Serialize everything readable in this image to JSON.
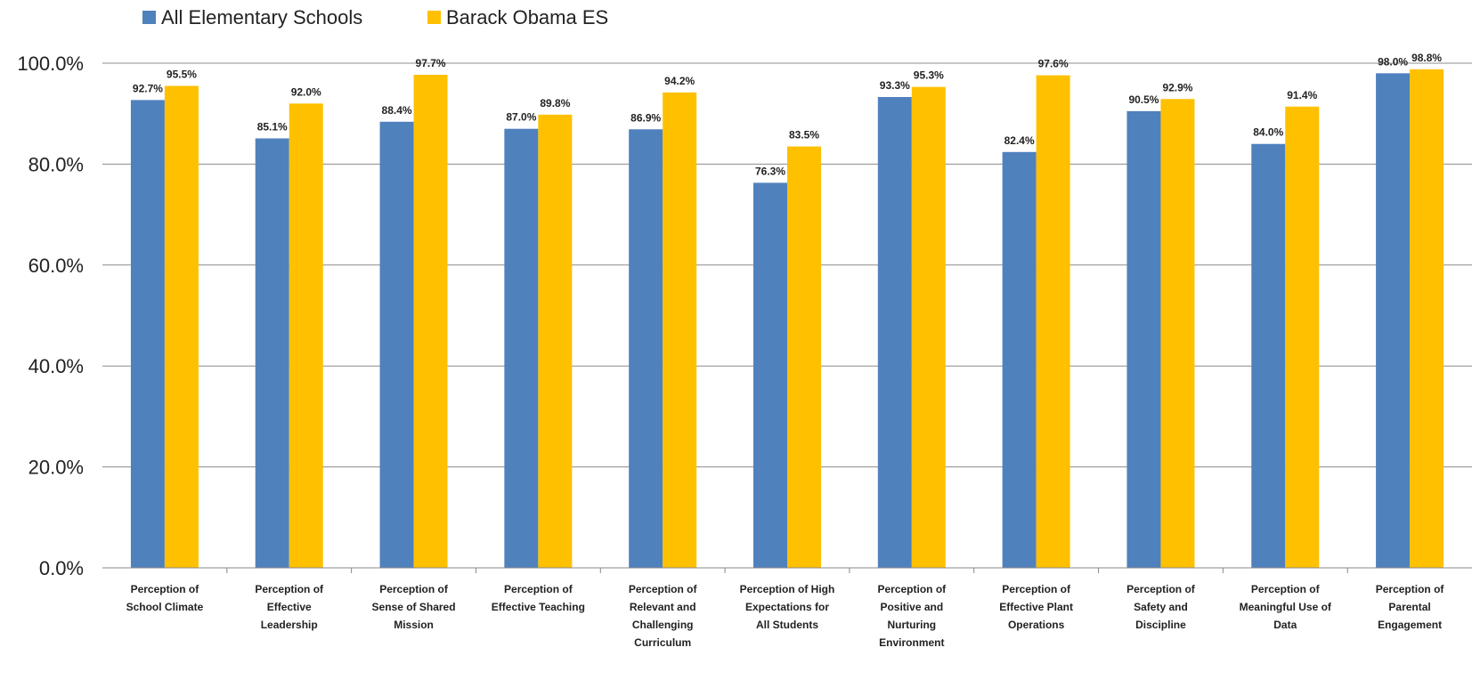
{
  "chart_data": {
    "type": "bar",
    "title": "",
    "xlabel": "",
    "ylabel": "",
    "ylim": [
      0,
      100
    ],
    "ytick_labels": [
      "0.0%",
      "20.0%",
      "40.0%",
      "60.0%",
      "80.0%",
      "100.0%"
    ],
    "yticks": [
      0,
      20,
      40,
      60,
      80,
      100
    ],
    "grid": "horizontal",
    "legend_position": "top-left",
    "categories": [
      [
        "Perception of",
        "School Climate"
      ],
      [
        "Perception of",
        "Effective",
        "Leadership"
      ],
      [
        "Perception of",
        "Sense of Shared",
        "Mission"
      ],
      [
        "Perception of",
        "Effective Teaching"
      ],
      [
        "Perception of",
        "Relevant and",
        "Challenging",
        "Curriculum"
      ],
      [
        "Perception of High",
        "Expectations for",
        "All Students"
      ],
      [
        "Perception of",
        "Positive and",
        "Nurturing",
        "Environment"
      ],
      [
        "Perception of",
        "Effective Plant",
        "Operations"
      ],
      [
        "Perception of",
        "Safety and",
        "Discipline"
      ],
      [
        "Perception of",
        "Meaningful Use of",
        "Data"
      ],
      [
        "Perception of",
        "Parental",
        "Engagement"
      ]
    ],
    "series": [
      {
        "name": "All Elementary Schools",
        "color": "#4f81bd",
        "values": [
          92.7,
          85.1,
          88.4,
          87.0,
          86.9,
          76.3,
          93.3,
          82.4,
          90.5,
          84.0,
          98.0
        ],
        "labels": [
          "92.7%",
          "85.1%",
          "88.4%",
          "87.0%",
          "86.9%",
          "76.3%",
          "93.3%",
          "82.4%",
          "90.5%",
          "84.0%",
          "98.0%"
        ]
      },
      {
        "name": "Barack Obama ES",
        "color": "#ffc000",
        "values": [
          95.5,
          92.0,
          97.7,
          89.8,
          94.2,
          83.5,
          95.3,
          97.6,
          92.9,
          91.4,
          98.8
        ],
        "labels": [
          "95.5%",
          "92.0%",
          "97.7%",
          "89.8%",
          "94.2%",
          "83.5%",
          "95.3%",
          "97.6%",
          "92.9%",
          "91.4%",
          "98.8%"
        ]
      }
    ]
  }
}
